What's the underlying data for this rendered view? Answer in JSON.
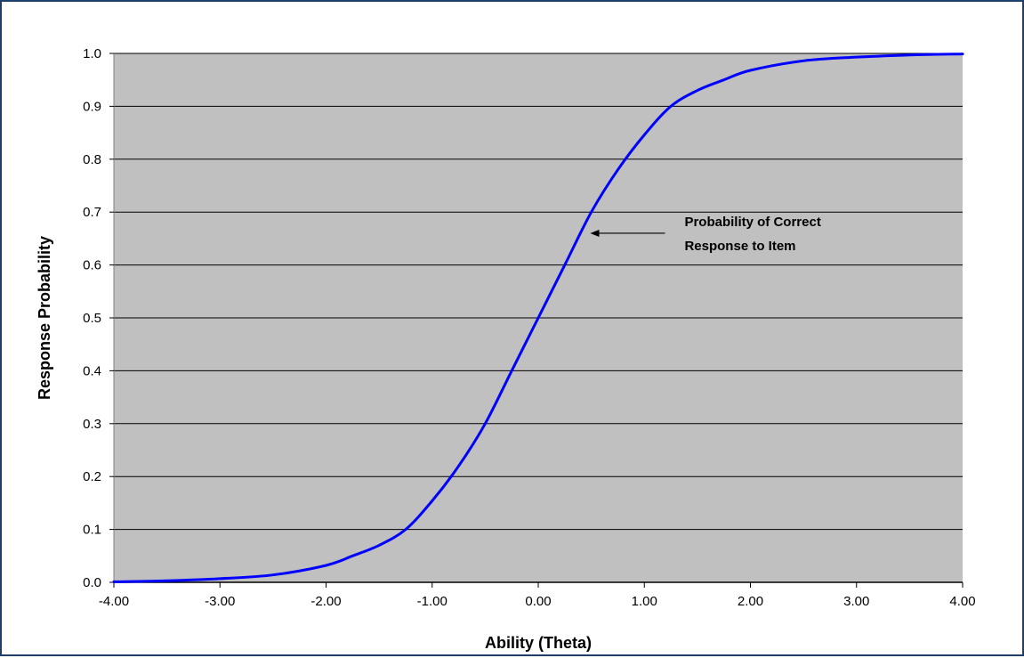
{
  "chart_data": {
    "type": "line",
    "title": "",
    "xlabel": "Ability (Theta)",
    "ylabel": "Response Probability",
    "xlim": [
      -4.0,
      4.0
    ],
    "ylim": [
      0.0,
      1.0
    ],
    "x_ticks": [
      -4.0,
      -3.0,
      -2.0,
      -1.0,
      0.0,
      1.0,
      2.0,
      3.0,
      4.0
    ],
    "x_tick_labels": [
      "-4.00",
      "-3.00",
      "-2.00",
      "-1.00",
      "0.00",
      "1.00",
      "2.00",
      "3.00",
      "4.00"
    ],
    "y_ticks": [
      0.0,
      0.1,
      0.2,
      0.3,
      0.4,
      0.5,
      0.6,
      0.7,
      0.8,
      0.9,
      1.0
    ],
    "y_tick_labels": [
      "0.0",
      "0.1",
      "0.2",
      "0.3",
      "0.4",
      "0.5",
      "0.6",
      "0.7",
      "0.8",
      "0.9",
      "1.0"
    ],
    "grid": "horizontal",
    "plot_background": "#c0c0c0",
    "series": [
      {
        "color": "#0000ff",
        "x": [
          -4.0,
          -3.5,
          -3.0,
          -2.5,
          -2.0,
          -1.75,
          -1.5,
          -1.25,
          -1.0,
          -0.75,
          -0.5,
          -0.25,
          0.0,
          0.25,
          0.5,
          0.75,
          1.0,
          1.25,
          1.5,
          1.75,
          2.0,
          2.5,
          3.0,
          3.5,
          4.0
        ],
        "y": [
          0.001,
          0.003,
          0.007,
          0.014,
          0.032,
          0.05,
          0.07,
          0.1,
          0.154,
          0.22,
          0.3,
          0.4,
          0.5,
          0.6,
          0.7,
          0.78,
          0.846,
          0.9,
          0.93,
          0.95,
          0.968,
          0.986,
          0.993,
          0.997,
          0.999
        ]
      }
    ],
    "annotations": [
      {
        "lines": [
          "Probability of Correct",
          "Response to Item"
        ],
        "arrow_to": {
          "x": 0.44,
          "y": 0.66
        }
      }
    ]
  }
}
